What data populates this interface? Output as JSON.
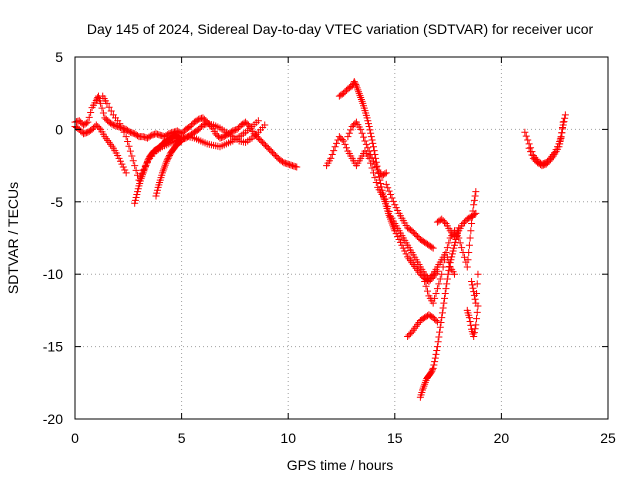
{
  "chart_data": {
    "type": "scatter",
    "title": "Day 145 of 2024, Sidereal Day-to-day VTEC variation (SDTVAR) for receiver ucor",
    "xlabel": "GPS time / hours",
    "ylabel": "SDTVAR / TECUs",
    "xlim": [
      0,
      25
    ],
    "ylim": [
      -20,
      5
    ],
    "xticks": [
      0,
      5,
      10,
      15,
      20,
      25
    ],
    "yticks": [
      5,
      0,
      -5,
      -10,
      -15,
      -20
    ],
    "grid": true,
    "marker": "+",
    "series": [
      {
        "name": "SDTVAR",
        "color": "#ff0000",
        "tracks": [
          {
            "x": [
              0.0,
              0.2,
              0.4,
              0.6,
              0.8,
              1.0,
              1.1,
              1.2,
              1.4,
              1.6,
              1.8,
              2.0,
              2.2,
              2.4,
              2.6,
              2.8,
              3.0,
              3.2,
              3.4,
              3.6,
              3.8,
              4.0,
              4.2,
              4.4,
              4.6,
              4.8,
              5.0,
              5.2,
              5.4,
              5.6,
              5.8,
              6.0,
              6.2,
              6.4,
              6.6,
              6.8,
              7.0,
              7.2,
              7.4,
              7.6,
              7.8,
              8.0,
              8.2,
              8.4,
              8.6,
              8.8,
              9.0,
              9.2,
              9.4,
              9.6,
              9.8,
              10.0,
              10.2,
              10.4
            ],
            "y": [
              0.5,
              0.6,
              0.3,
              0.5,
              1.5,
              2.0,
              2.3,
              1.8,
              0.8,
              0.5,
              0.3,
              0.2,
              0.1,
              0.0,
              -0.2,
              -0.3,
              -0.5,
              -0.5,
              -0.6,
              -0.4,
              -0.3,
              -0.4,
              -0.5,
              -0.3,
              -0.2,
              -0.1,
              -0.3,
              0.0,
              0.2,
              0.5,
              0.7,
              0.8,
              0.5,
              0.2,
              -0.3,
              -0.6,
              -0.5,
              -0.3,
              -0.1,
              0.0,
              0.3,
              0.5,
              0.2,
              -0.3,
              -0.6,
              -0.9,
              -1.2,
              -1.5,
              -1.8,
              -2.1,
              -2.3,
              -2.4,
              -2.5,
              -2.6
            ]
          },
          {
            "x": [
              0.0,
              0.2,
              0.4,
              0.6,
              0.8,
              1.0,
              1.2,
              1.4,
              1.6,
              1.8,
              2.0,
              2.2,
              2.4
            ],
            "y": [
              0.2,
              0.0,
              -0.3,
              -0.2,
              0.0,
              0.3,
              0.0,
              -0.5,
              -0.9,
              -1.3,
              -1.8,
              -2.4,
              -3.0
            ]
          },
          {
            "x": [
              1.3,
              1.5,
              1.8,
              2.1,
              2.4,
              2.6,
              2.8,
              3.0,
              3.2,
              3.5,
              3.8,
              4.1,
              4.4,
              4.7,
              5.0,
              5.3,
              5.6,
              5.9,
              6.2,
              6.5,
              6.8,
              7.1,
              7.4,
              7.7,
              8.0,
              8.3,
              8.6
            ],
            "y": [
              2.3,
              1.8,
              1.0,
              0.4,
              -0.5,
              -1.5,
              -2.5,
              -3.5,
              -2.8,
              -2.0,
              -1.5,
              -1.2,
              -1.0,
              -0.8,
              -0.6,
              -0.5,
              -0.6,
              -0.8,
              -1.0,
              -1.1,
              -1.2,
              -1.0,
              -0.8,
              -0.5,
              -0.2,
              0.2,
              0.6
            ]
          },
          {
            "x": [
              2.8,
              2.9,
              3.0,
              3.1,
              3.2,
              3.3,
              3.4,
              3.5,
              3.6,
              3.7,
              3.8,
              3.9,
              4.0,
              4.1,
              4.2,
              4.3,
              4.4,
              4.5,
              4.6,
              4.7,
              4.8,
              4.9,
              5.0,
              5.2,
              5.4,
              5.6,
              5.8,
              6.0,
              6.2,
              6.5,
              6.8,
              7.1,
              7.4,
              7.7,
              8.0,
              8.3,
              8.6,
              8.9
            ],
            "y": [
              -5.1,
              -4.5,
              -3.9,
              -3.4,
              -3.0,
              -2.6,
              -2.2,
              -1.9,
              -1.7,
              -1.5,
              -1.4,
              -1.3,
              -1.2,
              -1.0,
              -0.9,
              -0.8,
              -0.7,
              -0.6,
              -0.5,
              -0.4,
              -0.5,
              -0.6,
              -0.7,
              -0.6,
              -0.4,
              -0.2,
              0.0,
              0.3,
              0.4,
              0.3,
              0.1,
              -0.2,
              -0.5,
              -0.8,
              -0.9,
              -0.6,
              -0.2,
              0.3
            ]
          },
          {
            "x": [
              3.8,
              3.9,
              4.0,
              4.1,
              4.2,
              4.3,
              4.4,
              4.5,
              4.6,
              4.7,
              4.8,
              4.9,
              5.0
            ],
            "y": [
              -4.6,
              -4.0,
              -3.5,
              -3.0,
              -2.6,
              -2.2,
              -1.9,
              -1.6,
              -1.4,
              -1.2,
              -1.0,
              -0.9,
              -0.8
            ]
          },
          {
            "x": [
              11.8,
              12.0,
              12.2,
              12.4,
              12.6,
              12.8,
              13.0,
              13.2,
              13.4,
              13.6,
              13.8,
              14.0,
              14.2,
              14.4,
              14.6,
              14.8,
              15.0,
              15.2,
              15.4,
              15.6,
              15.8,
              16.0,
              16.2,
              16.4,
              16.6,
              16.8,
              17.0,
              17.2,
              17.4,
              17.6,
              17.8
            ],
            "y": [
              -2.5,
              -2.0,
              -1.2,
              -0.5,
              -0.8,
              -1.5,
              -2.0,
              -2.5,
              -2.0,
              -1.5,
              -2.0,
              -3.0,
              -4.0,
              -4.5,
              -5.0,
              -6.0,
              -6.5,
              -7.0,
              -7.5,
              -8.0,
              -8.5,
              -9.0,
              -9.5,
              -10.0,
              -10.3,
              -10.0,
              -9.5,
              -9.0,
              -8.5,
              -9.5,
              -10.0
            ]
          },
          {
            "x": [
              12.4,
              12.6,
              12.8,
              13.0,
              13.1,
              13.2,
              13.3,
              13.4,
              13.5,
              13.6,
              13.7,
              13.8,
              13.9,
              14.0,
              14.1,
              14.2,
              14.3,
              14.4,
              14.5,
              14.6,
              14.7,
              14.8,
              14.9,
              15.0,
              15.2,
              15.4,
              15.6,
              15.8,
              16.0,
              16.2,
              16.4,
              16.6,
              16.8,
              17.0
            ],
            "y": [
              2.3,
              2.5,
              2.8,
              3.0,
              3.3,
              3.0,
              2.6,
              2.2,
              1.8,
              1.3,
              0.8,
              0.2,
              -0.5,
              -1.2,
              -2.0,
              -2.8,
              -3.5,
              -4.2,
              -4.8,
              -5.3,
              -5.8,
              -6.2,
              -6.6,
              -7.0,
              -7.6,
              -8.2,
              -8.8,
              -9.2,
              -9.6,
              -10.0,
              -10.3,
              -10.5,
              -10.2,
              -9.8
            ]
          },
          {
            "x": [
              12.8,
              13.0,
              13.2,
              13.4,
              13.6,
              13.8,
              14.0,
              14.2,
              14.4,
              14.6
            ],
            "y": [
              -0.5,
              0.2,
              0.5,
              0.0,
              -0.8,
              -1.5,
              -2.2,
              -2.8,
              -3.2,
              -3.0
            ]
          },
          {
            "x": [
              14.6,
              14.8,
              15.0,
              15.2,
              15.4,
              15.6,
              15.8,
              16.0,
              16.2,
              16.4,
              16.6,
              16.8
            ],
            "y": [
              -3.8,
              -4.5,
              -5.2,
              -5.8,
              -6.3,
              -6.8,
              -7.0,
              -7.3,
              -7.6,
              -7.8,
              -8.0,
              -8.2
            ]
          },
          {
            "x": [
              15.6,
              15.8,
              16.0,
              16.2,
              16.4,
              16.6,
              16.8,
              17.0
            ],
            "y": [
              -14.3,
              -14.0,
              -13.6,
              -13.2,
              -13.0,
              -12.8,
              -13.0,
              -13.3
            ]
          },
          {
            "x": [
              16.2,
              16.3,
              16.4,
              16.5,
              16.6,
              16.7,
              16.8,
              16.9,
              17.0,
              17.1,
              17.2,
              17.3,
              17.4,
              17.5,
              17.6,
              17.7,
              17.8,
              17.9,
              18.0
            ],
            "y": [
              -18.5,
              -18.0,
              -17.6,
              -17.2,
              -17.0,
              -16.8,
              -16.5,
              -15.8,
              -15.0,
              -14.0,
              -13.0,
              -12.0,
              -11.0,
              -10.0,
              -9.2,
              -8.6,
              -8.0,
              -7.4,
              -6.8
            ]
          },
          {
            "x": [
              16.4,
              16.6,
              16.8,
              17.0,
              17.2,
              17.4,
              17.6,
              17.8,
              18.0,
              18.2,
              18.4,
              18.5,
              18.6,
              18.7,
              18.8
            ],
            "y": [
              -10.5,
              -11.5,
              -12.0,
              -11.0,
              -10.0,
              -8.5,
              -7.5,
              -7.0,
              -7.5,
              -8.5,
              -9.5,
              -8.0,
              -6.5,
              -5.2,
              -4.3
            ]
          },
          {
            "x": [
              17.0,
              17.2,
              17.4,
              17.6,
              17.8,
              18.0,
              18.2,
              18.4,
              18.6,
              18.8
            ],
            "y": [
              -6.4,
              -6.2,
              -6.5,
              -7.0,
              -7.4,
              -7.0,
              -6.5,
              -6.2,
              -6.0,
              -5.8
            ]
          },
          {
            "x": [
              18.4,
              18.5,
              18.6,
              18.7,
              18.8,
              18.9
            ],
            "y": [
              -12.5,
              -13.0,
              -13.8,
              -14.3,
              -13.5,
              -12.2
            ]
          },
          {
            "x": [
              18.6,
              18.7,
              18.8,
              18.9
            ],
            "y": [
              -10.5,
              -11.2,
              -12.0,
              -10.0
            ]
          },
          {
            "x": [
              21.1,
              21.3,
              21.5,
              21.7,
              21.9,
              22.1,
              22.3,
              22.5,
              22.7,
              22.8,
              22.9,
              23.0
            ],
            "y": [
              -0.2,
              -1.0,
              -1.8,
              -2.2,
              -2.4,
              -2.3,
              -2.0,
              -1.6,
              -1.0,
              -0.5,
              0.3,
              1.0
            ]
          },
          {
            "x": [
              21.3,
              21.5,
              21.7,
              21.9,
              22.1,
              22.3,
              22.5,
              22.7,
              22.8,
              22.9
            ],
            "y": [
              -1.3,
              -2.0,
              -2.3,
              -2.5,
              -2.4,
              -2.1,
              -1.7,
              -1.2,
              -0.6,
              0.5
            ]
          }
        ]
      }
    ]
  }
}
